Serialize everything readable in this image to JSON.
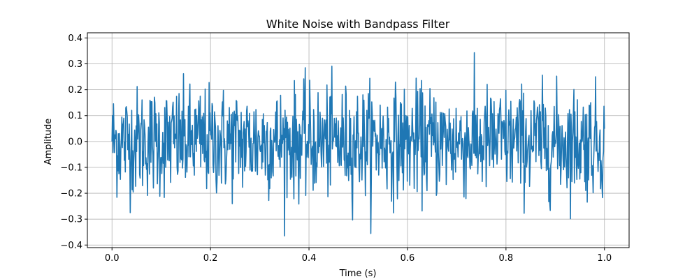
{
  "chart_data": {
    "type": "line",
    "title": "White Noise with Bandpass Filter",
    "xlabel": "Time (s)",
    "ylabel": "Amplitude",
    "xlim": [
      -0.05,
      1.05
    ],
    "ylim": [
      -0.41,
      0.42
    ],
    "xticks": [
      0.0,
      0.2,
      0.4,
      0.6,
      0.8,
      1.0
    ],
    "xtick_labels": [
      "0.0",
      "0.2",
      "0.4",
      "0.6",
      "0.8",
      "1.0"
    ],
    "yticks": [
      -0.4,
      -0.3,
      -0.2,
      -0.1,
      0.0,
      0.1,
      0.2,
      0.3,
      0.4
    ],
    "ytick_labels": [
      "−0.4",
      "−0.3",
      "−0.2",
      "−0.1",
      "0.0",
      "0.1",
      "0.2",
      "0.3",
      "0.4"
    ],
    "grid": true,
    "legend": null,
    "series": [
      {
        "color": "#1f77b4",
        "x_range": [
          0.0,
          1.0
        ],
        "y_envelope": {
          "typical_max": 0.22,
          "typical_min": -0.22,
          "peak_max": 0.38,
          "peak_min": -0.37
        },
        "samples": 1000
      }
    ]
  }
}
